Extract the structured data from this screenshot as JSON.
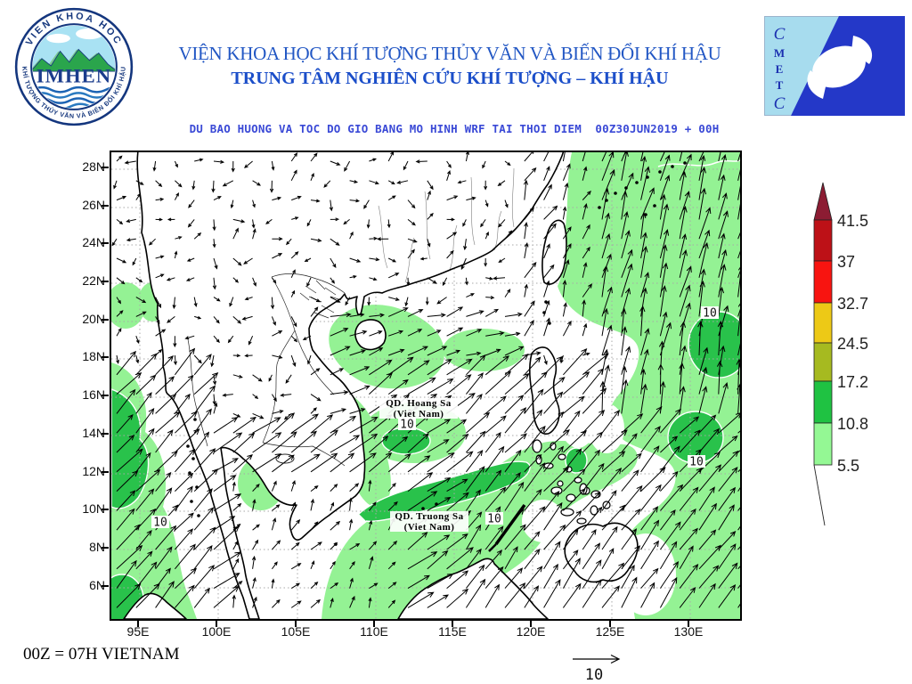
{
  "header": {
    "title_line1": "VIỆN KHOA HỌC KHÍ TƯỢNG THỦY VĂN VÀ BIẾN ĐỔI KHÍ HẬU",
    "title_line2": "TRUNG TÂM NGHIÊN CỨU KHÍ TƯỢNG – KHÍ HẬU",
    "subtitle": "DU BAO HUONG VA TOC DO GIO BANG MO HINH WRF TAI THOI DIEM  00Z30JUN2019 + 00H"
  },
  "logos": {
    "imhen": {
      "arc_top": "VIEN KHOA HOC",
      "arc_bottom": "KHÍ TƯỢNG THỦY VĂN VÀ BIẾN ĐỔI KHÍ HẬU",
      "center": "IMHEN"
    },
    "cmetc": {
      "letters": [
        "C",
        "M",
        "E",
        "T",
        "C"
      ]
    }
  },
  "map": {
    "lat_labels": [
      "28N",
      "26N",
      "24N",
      "22N",
      "20N",
      "18N",
      "16N",
      "14N",
      "12N",
      "10N",
      "8N",
      "6N"
    ],
    "lon_labels": [
      "95E",
      "100E",
      "105E",
      "110E",
      "115E",
      "120E",
      "125E",
      "130E"
    ],
    "islands": [
      {
        "name": "QD. Hoang Sa",
        "country": "(Viet Nam)"
      },
      {
        "name": "QD. Truong Sa",
        "country": "(Viet Nam)"
      }
    ],
    "contour_label": "10",
    "shading_colors": {
      "light_green": "#94f294",
      "medium_green": "#29c24b"
    }
  },
  "legend": {
    "values": [
      "41.5",
      "37",
      "32.7",
      "24.5",
      "17.2",
      "10.8",
      "5.5"
    ],
    "cell_colors": [
      "#bd1117",
      "#f81410",
      "#edc916",
      "#a6ba20",
      "#1fc242",
      "#94f894"
    ],
    "triangle_color": "#8c1c33"
  },
  "footer": {
    "time_note": "00Z = 07H VIETNAM",
    "ref_arrow_label": "10"
  }
}
